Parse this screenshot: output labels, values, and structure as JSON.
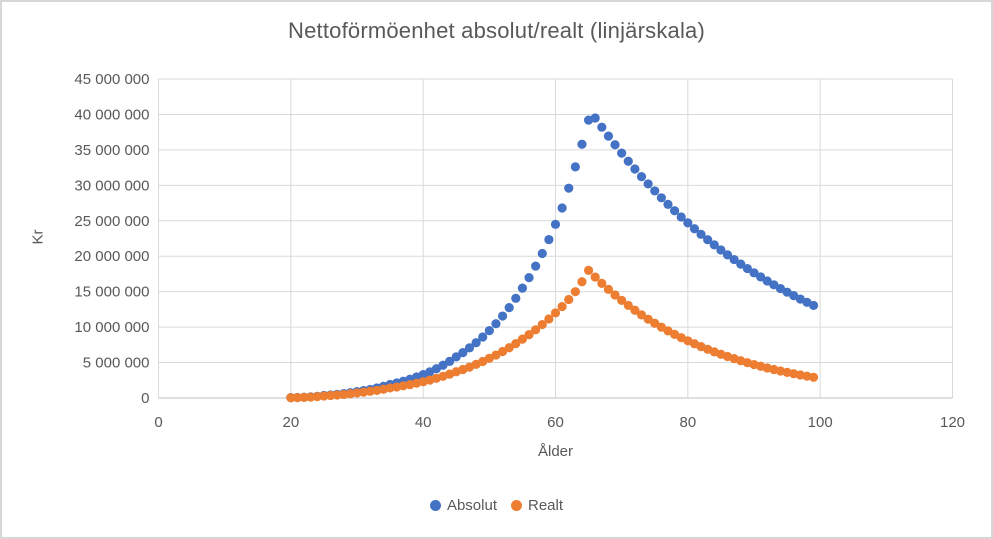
{
  "chart_data": {
    "type": "scatter",
    "title": "Nettoförmöenhet absolut/realt (linjärskala)",
    "xlabel": "Ålder",
    "ylabel": "Kr",
    "xlim": [
      0,
      120
    ],
    "ylim": [
      0,
      45000000
    ],
    "grid": true,
    "legend_position": "bottom",
    "gridline_color": "#d9d9d9",
    "axis_line_color": "#bfbfbf",
    "text_color": "#595959",
    "x_axis": {
      "title": "Ålder",
      "ticks": [
        {
          "v": 0,
          "label": "0"
        },
        {
          "v": 20,
          "label": "20"
        },
        {
          "v": 40,
          "label": "40"
        },
        {
          "v": 60,
          "label": "60"
        },
        {
          "v": 80,
          "label": "80"
        },
        {
          "v": 100,
          "label": "100"
        },
        {
          "v": 120,
          "label": "120"
        }
      ]
    },
    "y_axis": {
      "title": "Kr",
      "ticks": [
        {
          "v": 0,
          "label": "0"
        },
        {
          "v": 5000000,
          "label": "5 000 000"
        },
        {
          "v": 10000000,
          "label": "10 000 000"
        },
        {
          "v": 15000000,
          "label": "15 000 000"
        },
        {
          "v": 20000000,
          "label": "20 000 000"
        },
        {
          "v": 25000000,
          "label": "25 000 000"
        },
        {
          "v": 30000000,
          "label": "30 000 000"
        },
        {
          "v": 35000000,
          "label": "35 000 000"
        },
        {
          "v": 40000000,
          "label": "40 000 000"
        },
        {
          "v": 45000000,
          "label": "45 000 000"
        }
      ]
    },
    "x": [
      20,
      21,
      22,
      23,
      24,
      25,
      26,
      27,
      28,
      29,
      30,
      31,
      32,
      33,
      34,
      35,
      36,
      37,
      38,
      39,
      40,
      41,
      42,
      43,
      44,
      45,
      46,
      47,
      48,
      49,
      50,
      51,
      52,
      53,
      54,
      55,
      56,
      57,
      58,
      59,
      60,
      61,
      62,
      63,
      64,
      65,
      66,
      67,
      68,
      69,
      70,
      71,
      72,
      73,
      74,
      75,
      76,
      77,
      78,
      79,
      80,
      81,
      82,
      83,
      84,
      85,
      86,
      87,
      88,
      89,
      90,
      91,
      92,
      93,
      94,
      95,
      96,
      97,
      98,
      99
    ],
    "series": [
      {
        "name": "Absolut",
        "color": "#4472C4",
        "marker": "circle",
        "values": [
          50000,
          74000,
          110000,
          160000,
          240000,
          350000,
          420000,
          510000,
          620000,
          750000,
          900000,
          1050000,
          1210000,
          1410000,
          1640000,
          1900000,
          2120000,
          2370000,
          2650000,
          2960000,
          3300000,
          3690000,
          4130000,
          4620000,
          5170000,
          5800000,
          6400000,
          7070000,
          7800000,
          8610000,
          9500000,
          10480000,
          11560000,
          12750000,
          14060000,
          15500000,
          16980000,
          18610000,
          20390000,
          22350000,
          24500000,
          26800000,
          29600000,
          32600000,
          35800000,
          39200000,
          39500000,
          38200000,
          36940000,
          35720000,
          34540000,
          33400000,
          32300000,
          31230000,
          30200000,
          29210000,
          28240000,
          27310000,
          26410000,
          25540000,
          24700000,
          23880000,
          23090000,
          22330000,
          21600000,
          20880000,
          20190000,
          19530000,
          18880000,
          18260000,
          17660000,
          17080000,
          16510000,
          15970000,
          15440000,
          14930000,
          14440000,
          13960000,
          13500000,
          13060000
        ]
      },
      {
        "name": "Realt",
        "color": "#ED7D31",
        "marker": "circle",
        "values": [
          40000,
          60000,
          90000,
          130000,
          200000,
          290000,
          350000,
          420000,
          500000,
          600000,
          720000,
          830000,
          950000,
          1080000,
          1240000,
          1420000,
          1560000,
          1720000,
          1890000,
          2090000,
          2300000,
          2530000,
          2780000,
          3060000,
          3370000,
          3700000,
          4020000,
          4360000,
          4740000,
          5150000,
          5600000,
          6060000,
          6560000,
          7090000,
          7670000,
          8300000,
          8940000,
          9620000,
          10360000,
          11150000,
          12000000,
          12900000,
          13900000,
          15000000,
          16400000,
          18000000,
          17060000,
          16170000,
          15330000,
          14530000,
          13770000,
          13060000,
          12380000,
          11730000,
          11120000,
          10540000,
          9990000,
          9470000,
          8980000,
          8510000,
          8070000,
          7650000,
          7250000,
          6870000,
          6510000,
          6170000,
          5850000,
          5550000,
          5260000,
          4980000,
          4720000,
          4480000,
          4240000,
          4020000,
          3810000,
          3610000,
          3430000,
          3250000,
          3080000,
          2920000
        ]
      }
    ]
  }
}
